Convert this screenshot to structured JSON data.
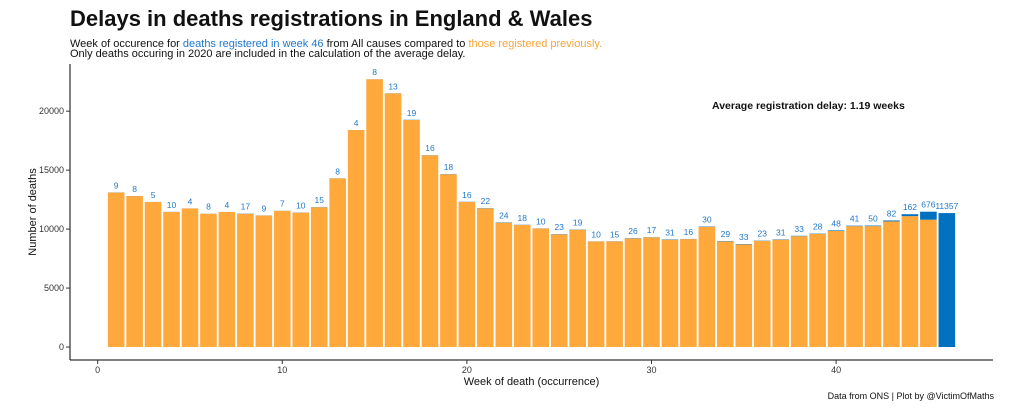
{
  "header": {
    "title": "Delays in deaths registrations in England & Wales",
    "subtitle_1_prefix": "Week of occurence for ",
    "subtitle_1_blue": "deaths registered in week 46",
    "subtitle_1_mid": " from All causes compared to ",
    "subtitle_1_orange": "those registered previously.",
    "subtitle_2": "Only deaths occuring in 2020 are included in the calculation of the average delay."
  },
  "caption": "Data from ONS | Plot by @VictimOfMaths",
  "colors": {
    "previous": "#ffa83b",
    "week46": "#0070c0",
    "label": "#1f77c9"
  },
  "chart_data": {
    "type": "bar",
    "stacked": true,
    "xlabel": "Week of death (occurrence)",
    "ylabel": "Number of deaths",
    "xlim": [
      -1.5,
      48.5
    ],
    "ylim": [
      -1100,
      24000
    ],
    "x_ticks": [
      0,
      10,
      20,
      30,
      40
    ],
    "y_ticks": [
      0,
      5000,
      10000,
      15000,
      20000
    ],
    "grid": false,
    "annotation": "Average registration delay: 1.19 weeks",
    "x": [
      1,
      2,
      3,
      4,
      5,
      6,
      7,
      8,
      9,
      10,
      11,
      12,
      13,
      14,
      15,
      16,
      17,
      18,
      19,
      20,
      21,
      22,
      23,
      24,
      25,
      26,
      27,
      28,
      29,
      30,
      31,
      32,
      33,
      34,
      35,
      36,
      37,
      38,
      39,
      40,
      41,
      42,
      43,
      44,
      45,
      46
    ],
    "series": [
      {
        "name": "those registered previously.",
        "values": [
          13100,
          12800,
          12300,
          11450,
          11750,
          11300,
          11450,
          11300,
          11150,
          11550,
          11400,
          11850,
          14300,
          18400,
          22700,
          21500,
          19250,
          16250,
          14650,
          12300,
          11750,
          10550,
          10350,
          10050,
          9550,
          9950,
          8950,
          8950,
          9200,
          9300,
          9100,
          9150,
          10200,
          8950,
          8700,
          9000,
          9100,
          9400,
          9600,
          9850,
          10250,
          10250,
          10650,
          11100,
          10800,
          0
        ]
      },
      {
        "name": "deaths registered in week 46",
        "values": [
          9,
          8,
          5,
          10,
          4,
          8,
          4,
          17,
          9,
          7,
          10,
          15,
          8,
          4,
          8,
          13,
          19,
          16,
          18,
          16,
          22,
          24,
          18,
          10,
          23,
          19,
          10,
          15,
          26,
          17,
          31,
          16,
          30,
          29,
          33,
          23,
          31,
          33,
          28,
          48,
          41,
          50,
          82,
          162,
          676,
          11357
        ]
      }
    ],
    "bar_labels": [
      "9",
      "8",
      "5",
      "10",
      "4",
      "8",
      "4",
      "17",
      "9",
      "7",
      "10",
      "15",
      "8",
      "4",
      "8",
      "13",
      "19",
      "16",
      "18",
      "16",
      "22",
      "24",
      "18",
      "10",
      "23",
      "19",
      "10",
      "15",
      "26",
      "17",
      "31",
      "16",
      "30",
      "29",
      "33",
      "23",
      "31",
      "33",
      "28",
      "48",
      "41",
      "50",
      "82",
      "162",
      "676",
      "11357"
    ]
  }
}
